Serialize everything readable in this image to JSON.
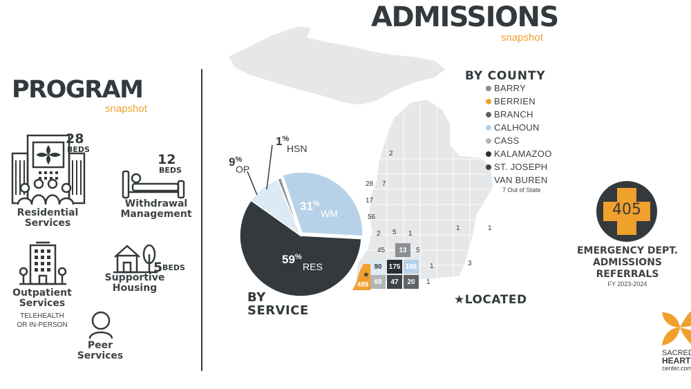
{
  "admissions": {
    "title": "ADMISSIONS",
    "subtitle": "snapshot"
  },
  "program": {
    "title": "PROGRAM",
    "subtitle": "snapshot",
    "residential": {
      "beds_number": "28",
      "beds_label": "BEDS",
      "label_line1": "Residential",
      "label_line2": "Services"
    },
    "withdrawal": {
      "beds_number": "12",
      "beds_label": "BEDS",
      "label_line1": "Withdrawal",
      "label_line2": "Management"
    },
    "outpatient": {
      "label_line1": "Outpatient",
      "label_line2": "Services",
      "sub_line1": "TELEHEALTH",
      "sub_line2": "OR IN-PERSON"
    },
    "supportive": {
      "beds_number": "5",
      "beds_label": "BEDS",
      "label_line1": "Supportive",
      "label_line2": "Housing"
    },
    "peer": {
      "label_line1": "Peer",
      "label_line2": "Services"
    }
  },
  "by_service": {
    "title_line1": "BY",
    "title_line2": "SERVICE",
    "slices": [
      {
        "name": "RES",
        "value": 59,
        "pct_label": "59",
        "color": "#33393c"
      },
      {
        "name": "WM",
        "value": 31,
        "pct_label": "31",
        "color": "#b7d2e8"
      },
      {
        "name": "OP",
        "value": 9,
        "pct_label": "9",
        "color": "#dbeaf4"
      },
      {
        "name": "HSN",
        "value": 1,
        "pct_label": "1",
        "color": "#8f9497"
      }
    ],
    "percent_sign": "%"
  },
  "by_county": {
    "title": "BY COUNTY",
    "items": [
      {
        "label": "BARRY",
        "color": "#8c8f92"
      },
      {
        "label": "BERRIEN",
        "color": "#f0a02c"
      },
      {
        "label": "BRANCH",
        "color": "#5f6366"
      },
      {
        "label": "CALHOUN",
        "color": "#b7d2e8"
      },
      {
        "label": "CASS",
        "color": "#b3b5b7"
      },
      {
        "label": "KALAMAZOO",
        "color": "#2b2f31"
      },
      {
        "label": "ST. JOSEPH",
        "color": "#3f4346"
      },
      {
        "label": "VAN BUREN",
        "color": "#dbeaf4"
      }
    ],
    "out_of_state": "7 Out of State"
  },
  "map_counts": {
    "n2_top": "2",
    "n28": "28",
    "n7": "7",
    "n17": "17",
    "n56": "56",
    "n2_mid": "2",
    "n5_mid": "5",
    "n1_mid": "1",
    "n1_east1": "1",
    "n1_east2": "1",
    "n45": "45",
    "n13": "13",
    "n5_b": "5",
    "n90": "90",
    "n175": "175",
    "n186": "186",
    "n1_c": "1",
    "n3": "3",
    "n489": "489",
    "n69": "69",
    "n47": "47",
    "n20": "20",
    "n1_d": "1"
  },
  "located": {
    "star": "★",
    "label": "LOCATED"
  },
  "emergency": {
    "number": "405",
    "line1": "EMERGENCY DEPT.",
    "line2": "ADMISSIONS",
    "line3": "REFERRALS",
    "fy": "FY 2023-2024"
  },
  "logo": {
    "line1": "SACRED",
    "line2": "HEART",
    "line3": "center.com"
  },
  "colors": {
    "accent": "#f0a02c",
    "dark": "#33393c",
    "lightblue": "#b7d2e8",
    "map": "#e6e7e8"
  }
}
